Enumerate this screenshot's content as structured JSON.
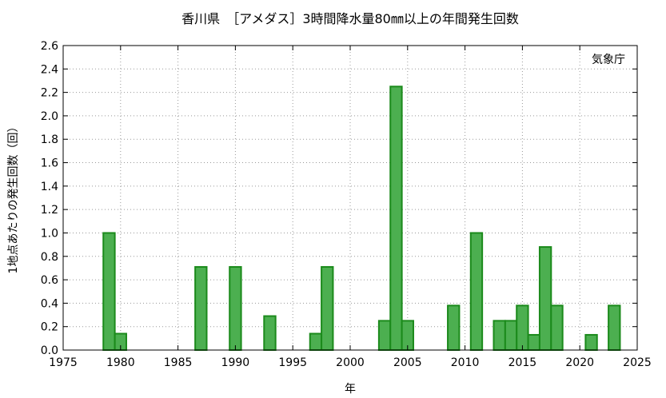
{
  "chart_data": {
    "type": "bar",
    "title": "香川県　［アメダス］3時間降水量80㎜以上の年間発生回数",
    "xlabel": "年",
    "ylabel": "1地点あたりの発生回数（回）",
    "credit": "気象庁",
    "xlim": [
      1975,
      2025
    ],
    "ylim": [
      0,
      2.6
    ],
    "x_ticks": [
      "1975",
      "1980",
      "1985",
      "1990",
      "1995",
      "2000",
      "2005",
      "2010",
      "2015",
      "2020",
      "2025"
    ],
    "y_ticks": [
      "0.0",
      "0.2",
      "0.4",
      "0.6",
      "0.8",
      "1.0",
      "1.2",
      "1.4",
      "1.6",
      "1.8",
      "2.0",
      "2.2",
      "2.4",
      "2.6"
    ],
    "grid": true,
    "bar_color": "#4caf50",
    "bar_edge_color": "#1b8a1b",
    "x": [
      1979,
      1980,
      1987,
      1990,
      1993,
      1997,
      1998,
      2003,
      2004,
      2005,
      2009,
      2011,
      2013,
      2014,
      2015,
      2016,
      2017,
      2018,
      2021,
      2023
    ],
    "values": [
      1.0,
      0.14,
      0.71,
      0.71,
      0.29,
      0.14,
      0.71,
      0.25,
      2.25,
      0.25,
      0.38,
      1.0,
      0.25,
      0.25,
      0.38,
      0.13,
      0.88,
      0.38,
      0.13,
      0.38
    ]
  }
}
